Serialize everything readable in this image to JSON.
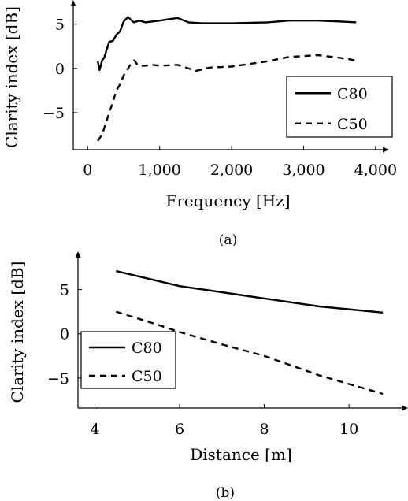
{
  "chart_data": [
    {
      "type": "line",
      "caption": "(a)",
      "xlabel": "Frequency [Hz]",
      "ylabel": "Clarity index [dB]",
      "xlim": [
        -200,
        4100
      ],
      "ylim": [
        -9.2,
        7.2
      ],
      "xticks": [
        0,
        1000,
        2000,
        3000,
        4000
      ],
      "xtick_labels": [
        "0",
        "1,000",
        "2,000",
        "3,000",
        "4,000"
      ],
      "yticks": [
        -5,
        0,
        5
      ],
      "ytick_labels": [
        "−5",
        "0",
        "5"
      ],
      "legend_position": "bottom-right",
      "series": [
        {
          "name": "C80",
          "style": "solid",
          "x": [
            140,
            165,
            200,
            230,
            260,
            300,
            350,
            400,
            450,
            500,
            560,
            640,
            720,
            800,
            900,
            1000,
            1250,
            1400,
            1600,
            2000,
            2500,
            2800,
            3200,
            3500,
            3730
          ],
          "y": [
            0.8,
            -0.2,
            0.9,
            1.2,
            2.0,
            3.0,
            3.1,
            3.8,
            4.2,
            5.3,
            5.8,
            5.2,
            5.4,
            5.2,
            5.3,
            5.4,
            5.7,
            5.2,
            5.1,
            5.1,
            5.2,
            5.4,
            5.4,
            5.3,
            5.2
          ]
        },
        {
          "name": "C50",
          "style": "dashed",
          "x": [
            140,
            200,
            280,
            350,
            400,
            450,
            500,
            600,
            650,
            700,
            800,
            900,
            1000,
            1250,
            1400,
            1500,
            1700,
            2000,
            2500,
            2800,
            3200,
            3500,
            3730
          ],
          "y": [
            -8.2,
            -7.5,
            -5.5,
            -3.8,
            -2.5,
            -1.8,
            -0.8,
            0.5,
            0.9,
            0.3,
            0.3,
            0.4,
            0.3,
            0.4,
            0.0,
            -0.3,
            0.1,
            0.2,
            0.8,
            1.3,
            1.5,
            1.2,
            0.9
          ]
        }
      ]
    },
    {
      "type": "line",
      "caption": "(b)",
      "xlabel": "Distance [m]",
      "ylabel": "Clarity index [dB]",
      "xlim": [
        3.6,
        11.3
      ],
      "ylim": [
        -8.4,
        8.8
      ],
      "xticks": [
        4,
        6,
        8,
        10
      ],
      "xtick_labels": [
        "4",
        "6",
        "8",
        "10"
      ],
      "yticks": [
        -5,
        0,
        5
      ],
      "ytick_labels": [
        "−5",
        "0",
        "5"
      ],
      "legend_position": "bottom-left",
      "series": [
        {
          "name": "C80",
          "style": "solid",
          "x": [
            4.5,
            6.0,
            7.0,
            8.0,
            9.3,
            10.8
          ],
          "y": [
            7.1,
            5.4,
            4.7,
            4.0,
            3.1,
            2.4
          ]
        },
        {
          "name": "C50",
          "style": "dashed",
          "x": [
            4.5,
            5.5,
            6.0,
            7.0,
            8.0,
            9.3,
            10.8
          ],
          "y": [
            2.5,
            1.0,
            0.2,
            -1.2,
            -2.5,
            -4.7,
            -6.8
          ]
        }
      ]
    }
  ]
}
